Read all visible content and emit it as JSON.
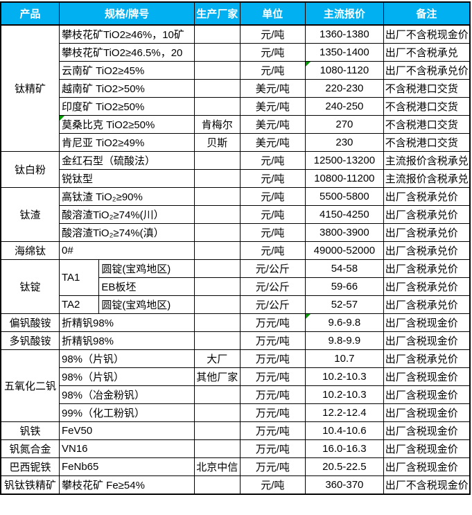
{
  "colors": {
    "header_bg": "#00B0F0",
    "header_text": "#FFFFFF",
    "grid_border": "#000000",
    "corner_flag": "#009900"
  },
  "table": {
    "headers": {
      "product": "产品",
      "spec": "规格/牌号",
      "maker": "生产厂家",
      "unit": "单位",
      "price": "主流报价",
      "note": "备注"
    },
    "rows": [
      {
        "product": "钛精矿",
        "spec": "攀枝花矿TiO2≥46%，10矿",
        "maker": "",
        "unit": "元/吨",
        "price": "1360-1380",
        "note": "出厂不含税现金价"
      },
      {
        "spec": "攀枝花矿TiO2≥46.5%，20",
        "maker": "",
        "unit": "元/吨",
        "price": "1350-1400",
        "note": "出厂不含税承兑"
      },
      {
        "spec": "云南矿 TiO2≥45%",
        "maker": "",
        "unit": "元/吨",
        "price": "1080-1120",
        "note": "出厂不含税承兑价",
        "price_flag": true
      },
      {
        "spec": "越南矿 TiO2>50%",
        "maker": "",
        "unit": "美元/吨",
        "price": "220-230",
        "note": "不含税港口交货"
      },
      {
        "spec": "印度矿 TiO2≥50%",
        "maker": "",
        "unit": "美元/吨",
        "price": "240-250",
        "note": "不含税港口交货"
      },
      {
        "spec": "莫桑比克 TiO2≥50%",
        "maker": "肯梅尔",
        "unit": "美元/吨",
        "price": "270",
        "note": "不含税港口交货",
        "spec_flag": true
      },
      {
        "spec": "肯尼亚 TiO2≥49%",
        "maker": "贝斯",
        "unit": "美元/吨",
        "price": "230",
        "note": "不含税港口交货"
      },
      {
        "product": "钛白粉",
        "spec": "金红石型（硫酸法）",
        "maker": "",
        "unit": "元/吨",
        "price": "12500-13200",
        "note": "主流报价含税承兑"
      },
      {
        "spec": "锐钛型",
        "maker": "",
        "unit": "元/吨",
        "price": "10800-11200",
        "note": "主流报价含税承兑"
      },
      {
        "product": "钛渣",
        "spec": "高钛渣 TiO₂≥90%",
        "maker": "",
        "unit": "元/吨",
        "price": "5500-5800",
        "note": "出厂含税承兑价"
      },
      {
        "spec": "酸溶渣TiO₂≥74%(川）",
        "maker": "",
        "unit": "元/吨",
        "price": "4150-4250",
        "note": "出厂含税承兑价"
      },
      {
        "spec": "酸溶渣TiO₂≥74%(滇）",
        "maker": "",
        "unit": "元/吨",
        "price": "3800-3900",
        "note": "出厂含税承兑价"
      },
      {
        "product": "海绵钛",
        "spec": "0#",
        "maker": "",
        "unit": "元/吨",
        "price": "49000-52000",
        "note": "出厂含税承兑价"
      },
      {
        "product": "钛锭",
        "grade": "TA1",
        "form": "圆锭(宝鸡地区)",
        "maker": "",
        "unit": "元/公斤",
        "price": "54-58",
        "note": "出厂含税承兑价"
      },
      {
        "form": "EB板坯",
        "maker": "",
        "unit": "元/公斤",
        "price": "59-66",
        "note": "出厂含税承兑价"
      },
      {
        "grade": "TA2",
        "form": "圆锭(宝鸡地区)",
        "maker": "",
        "unit": "元/公斤",
        "price": "52-57",
        "note": "出厂含税承兑价"
      },
      {
        "product": "偏钒酸铵",
        "spec": "折精钒98%",
        "maker": "",
        "unit": "万元/吨",
        "price": "9.6-9.8",
        "note": "出厂含税现金价",
        "price_flag": true
      },
      {
        "product": "多钒酸铵",
        "spec": "折精钒98%",
        "maker": "",
        "unit": "万元/吨",
        "price": "9.8-9.9",
        "note": "出厂含税现金价"
      },
      {
        "product": "五氧化二钒",
        "spec": "98%（片钒）",
        "maker": "大厂",
        "unit": "万元/吨",
        "price": "10.7",
        "note": "出厂含税承兑价"
      },
      {
        "spec": "98%（片钒）",
        "maker": "其他厂家",
        "unit": "万元/吨",
        "price": "10.2-10.3",
        "note": "出厂含税现金价"
      },
      {
        "spec": "98%（冶金粉钒）",
        "maker": "",
        "unit": "万元/吨",
        "price": "10.2-10.3",
        "note": "出厂含税现金价"
      },
      {
        "spec": "99%（化工粉钒）",
        "maker": "",
        "unit": "万元/吨",
        "price": "12.2-12.4",
        "note": "出厂含税现金价"
      },
      {
        "product": "钒铁",
        "spec": "FeV50",
        "maker": "",
        "unit": "万元/吨",
        "price": "10.4-10.6",
        "note": "出厂含税现金价"
      },
      {
        "product": "钒氮合金",
        "spec": "VN16",
        "maker": "",
        "unit": "万元/吨",
        "price": "16.0-16.3",
        "note": "出厂含税现金价"
      },
      {
        "product": "巴西铌铁",
        "spec": "FeNb65",
        "maker": "北京中信",
        "unit": "万元/吨",
        "price": "20.5-22.5",
        "note": "出厂含税现金价"
      },
      {
        "product": "钒钛铁精矿",
        "spec": "攀枝花矿 Fe≥54%",
        "maker": "",
        "unit": "元/吨",
        "price": "360-370",
        "note": "出厂不含税现金价"
      }
    ]
  }
}
